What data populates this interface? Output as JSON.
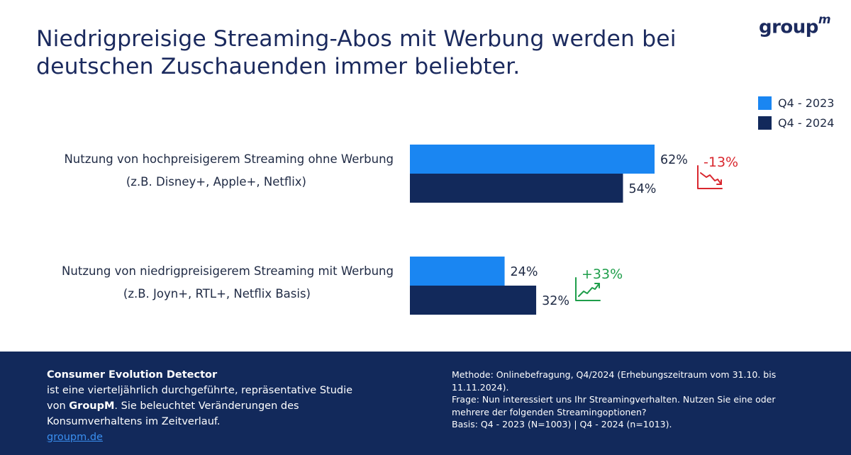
{
  "header": {
    "title": "Niedrigpreisige Streaming-Abos mit Werbung werden bei deutschen Zuschauenden immer beliebter.",
    "logo_main": "group",
    "logo_sup": "m"
  },
  "colors": {
    "series_2023": "#1a86f2",
    "series_2024": "#12295b",
    "negative": "#d9272e",
    "positive": "#1e9e4a",
    "text": "#1f2a44"
  },
  "chart_data": {
    "type": "bar",
    "orientation": "horizontal",
    "categories": [
      [
        "Nutzung von hochpreisigerem Streaming ohne Werbung",
        "(z.B. Disney+, Apple+, Netflix)"
      ],
      [
        "Nutzung von niedrigpreisigerem Streaming mit Werbung",
        "(z.B. Joyn+, RTL+, Netflix Basis)"
      ]
    ],
    "series": [
      {
        "name": "Q4 - 2023",
        "values": [
          62,
          24
        ],
        "labels": [
          "62%",
          "24%"
        ]
      },
      {
        "name": "Q4 - 2024",
        "values": [
          54,
          32
        ],
        "labels": [
          "54%",
          "32%"
        ]
      }
    ],
    "changes": [
      {
        "label": "-13%",
        "direction": "down"
      },
      {
        "label": "+33%",
        "direction": "up"
      }
    ],
    "xlim": [
      0,
      100
    ],
    "legend_position": "top-right",
    "grid": false
  },
  "footer": {
    "left": {
      "heading": "Consumer Evolution Detector",
      "line1": "ist eine vierteljährlich durchgeführte, repräsentative Studie",
      "line2_pre": "von ",
      "line2_brand": "GroupM",
      "line2_post": ". Sie beleuchtet Veränderungen des",
      "line3": "Konsumverhaltens im Zeitverlauf.",
      "link": "groupm.de"
    },
    "right": {
      "method_1": "Methode: Onlinebefragung, Q4/2024 (Erhebungszeitraum vom 31.10. bis",
      "method_2": "11.11.2024).",
      "question_1": "Frage: Nun interessiert uns Ihr Streamingverhalten. Nutzen Sie eine oder",
      "question_2": "mehrere der folgenden Streamingoptionen?",
      "basis": "Basis: Q4 - 2023 (N=1003) | Q4 - 2024 (n=1013)."
    }
  }
}
